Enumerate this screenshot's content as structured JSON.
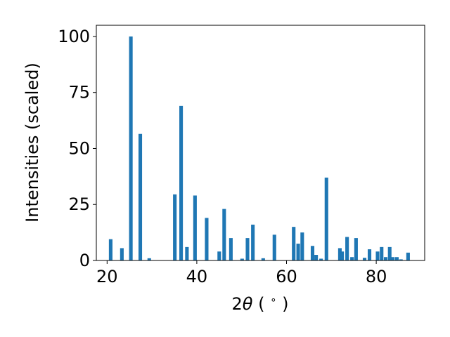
{
  "chart_data": {
    "type": "bar",
    "xlabel": "2θ (°)",
    "ylabel": "Intensities (scaled)",
    "xlim": [
      17.6,
      90.8
    ],
    "ylim": [
      0,
      105
    ],
    "xticks": [
      20,
      40,
      60,
      80
    ],
    "yticks": [
      0,
      25,
      50,
      75,
      100
    ],
    "bar_width": 0.8,
    "color": "#1f77b4",
    "grid": false,
    "x": [
      20.8,
      23.3,
      25.3,
      27.4,
      29.4,
      35.1,
      36.5,
      37.8,
      39.6,
      42.2,
      45.0,
      46.1,
      47.6,
      50.1,
      51.3,
      52.5,
      54.8,
      57.3,
      61.6,
      62.6,
      63.5,
      65.8,
      66.6,
      67.7,
      68.9,
      71.9,
      72.4,
      73.5,
      74.6,
      75.5,
      77.4,
      78.5,
      80.3,
      81.2,
      82.1,
      83.0,
      83.7,
      84.6,
      85.5,
      87.1
    ],
    "values": [
      9.5,
      5.5,
      100,
      56.5,
      1.0,
      29.5,
      69,
      6.0,
      29,
      19,
      4.0,
      23,
      10,
      0.8,
      10,
      16,
      1.0,
      11.5,
      15,
      7.5,
      12.5,
      6.5,
      2.5,
      0.8,
      37,
      5.5,
      4.0,
      10.5,
      1.5,
      10,
      1.2,
      5.0,
      4.0,
      6.0,
      1.5,
      6.0,
      1.5,
      1.5,
      0.5,
      3.5
    ]
  },
  "labels": {
    "xlabel_prefix": "2",
    "xlabel_theta": "θ",
    "xlabel_unit": " ( ",
    "xlabel_degree": "∘",
    "xlabel_close": " )"
  }
}
